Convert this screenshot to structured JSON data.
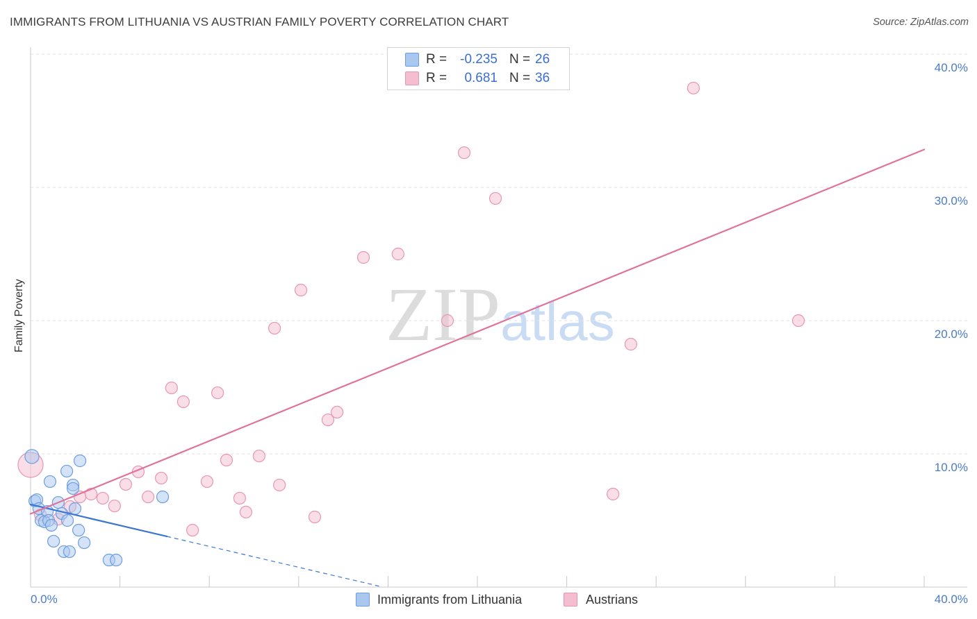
{
  "header": {
    "source": "Source: ZipAtlas.com"
  },
  "watermark": {
    "zip": "ZIP",
    "atlas": "atlas"
  },
  "legend": {
    "stats": [
      {
        "r_label": "R =",
        "r": "-0.235",
        "n_label": "N =",
        "n": "26"
      },
      {
        "r_label": "R =",
        "r": "0.681",
        "n_label": "N =",
        "n": "36"
      }
    ]
  },
  "colors": {
    "tick_label": "#4a7cc7",
    "stat_value": "#3a6fcf",
    "grid": "#e2e2e2",
    "axis": "#c8c8c8",
    "watermark_zip": "#dcdcdc",
    "watermark_atlas": "#c9dcf4"
  },
  "chart_data": {
    "type": "scatter",
    "title": "IMMIGRANTS FROM LITHUANIA VS AUSTRIAN FAMILY POVERTY CORRELATION CHART",
    "xlabel": "",
    "ylabel": "Family Poverty",
    "xlim": [
      0,
      40
    ],
    "ylim": [
      0,
      40
    ],
    "x_ticks": [
      0,
      40
    ],
    "x_tick_labels": [
      "0.0%",
      "40.0%"
    ],
    "x_minor_ticks": [
      0,
      4,
      8,
      12,
      16,
      20,
      24,
      28,
      32,
      36,
      40
    ],
    "y_ticks": [
      10,
      20,
      30,
      40
    ],
    "y_tick_labels": [
      "10.0%",
      "20.0%",
      "30.0%",
      "40.0%"
    ],
    "grid": true,
    "legend_position": "bottom",
    "series": [
      {
        "name": "Immigrants from Lithuania",
        "fill": "#a9c7ef",
        "stroke": "#6c9de0",
        "line_color": "#3b77d0",
        "r": -0.235,
        "n": 26,
        "trend": {
          "intercept": 6.2,
          "slope": -0.393,
          "solid_from": 0,
          "solid_to": 6.1,
          "dashed_to": 15.6
        },
        "points": [
          {
            "x": 0.06,
            "y": 9.8,
            "weight": 1.4
          },
          {
            "x": 0.19,
            "y": 6.46
          },
          {
            "x": 0.28,
            "y": 6.56
          },
          {
            "x": 0.37,
            "y": 5.89
          },
          {
            "x": 0.47,
            "y": 5.0
          },
          {
            "x": 0.62,
            "y": 4.9
          },
          {
            "x": 0.75,
            "y": 5.68
          },
          {
            "x": 0.81,
            "y": 5.0
          },
          {
            "x": 0.87,
            "y": 7.92
          },
          {
            "x": 0.93,
            "y": 4.64
          },
          {
            "x": 1.03,
            "y": 3.44
          },
          {
            "x": 1.24,
            "y": 6.35
          },
          {
            "x": 1.4,
            "y": 5.52
          },
          {
            "x": 1.49,
            "y": 2.66
          },
          {
            "x": 1.62,
            "y": 8.7
          },
          {
            "x": 1.65,
            "y": 5.0
          },
          {
            "x": 1.74,
            "y": 2.66
          },
          {
            "x": 1.9,
            "y": 7.66
          },
          {
            "x": 1.9,
            "y": 7.4
          },
          {
            "x": 1.99,
            "y": 5.89
          },
          {
            "x": 2.15,
            "y": 4.27
          },
          {
            "x": 2.21,
            "y": 9.48
          },
          {
            "x": 2.4,
            "y": 3.33
          },
          {
            "x": 3.51,
            "y": 2.03
          },
          {
            "x": 3.83,
            "y": 2.03
          },
          {
            "x": 5.91,
            "y": 6.77
          }
        ]
      },
      {
        "name": "Austrians",
        "fill": "#f5bdd0",
        "stroke": "#e895b3",
        "line_color": "#e0739b",
        "r": 0.681,
        "n": 36,
        "trend": {
          "intercept": 5.5,
          "slope": 0.6835,
          "solid_from": 0,
          "solid_to": 40
        },
        "points": [
          {
            "x": 0.0,
            "y": 9.17,
            "weight": 4.5
          },
          {
            "x": 0.44,
            "y": 5.42
          },
          {
            "x": 1.24,
            "y": 5.1
          },
          {
            "x": 1.77,
            "y": 6.04
          },
          {
            "x": 2.21,
            "y": 6.77
          },
          {
            "x": 2.71,
            "y": 6.98
          },
          {
            "x": 3.23,
            "y": 6.67
          },
          {
            "x": 3.76,
            "y": 6.09
          },
          {
            "x": 4.26,
            "y": 7.71
          },
          {
            "x": 4.82,
            "y": 8.65
          },
          {
            "x": 5.26,
            "y": 6.77
          },
          {
            "x": 5.85,
            "y": 8.18
          },
          {
            "x": 6.31,
            "y": 14.95
          },
          {
            "x": 6.84,
            "y": 13.91
          },
          {
            "x": 7.25,
            "y": 4.27
          },
          {
            "x": 7.9,
            "y": 7.92
          },
          {
            "x": 8.37,
            "y": 14.58
          },
          {
            "x": 8.77,
            "y": 9.53
          },
          {
            "x": 9.36,
            "y": 6.67
          },
          {
            "x": 9.64,
            "y": 5.63
          },
          {
            "x": 10.23,
            "y": 9.84
          },
          {
            "x": 10.92,
            "y": 19.43
          },
          {
            "x": 11.14,
            "y": 7.66
          },
          {
            "x": 12.1,
            "y": 22.29
          },
          {
            "x": 12.72,
            "y": 5.26
          },
          {
            "x": 13.31,
            "y": 12.55
          },
          {
            "x": 13.72,
            "y": 13.13
          },
          {
            "x": 14.9,
            "y": 24.74
          },
          {
            "x": 16.45,
            "y": 25.0
          },
          {
            "x": 18.66,
            "y": 20.0
          },
          {
            "x": 19.41,
            "y": 32.6
          },
          {
            "x": 20.81,
            "y": 29.17
          },
          {
            "x": 26.07,
            "y": 6.98
          },
          {
            "x": 26.87,
            "y": 18.23
          },
          {
            "x": 29.67,
            "y": 37.45
          },
          {
            "x": 34.37,
            "y": 20.0
          }
        ]
      }
    ]
  }
}
